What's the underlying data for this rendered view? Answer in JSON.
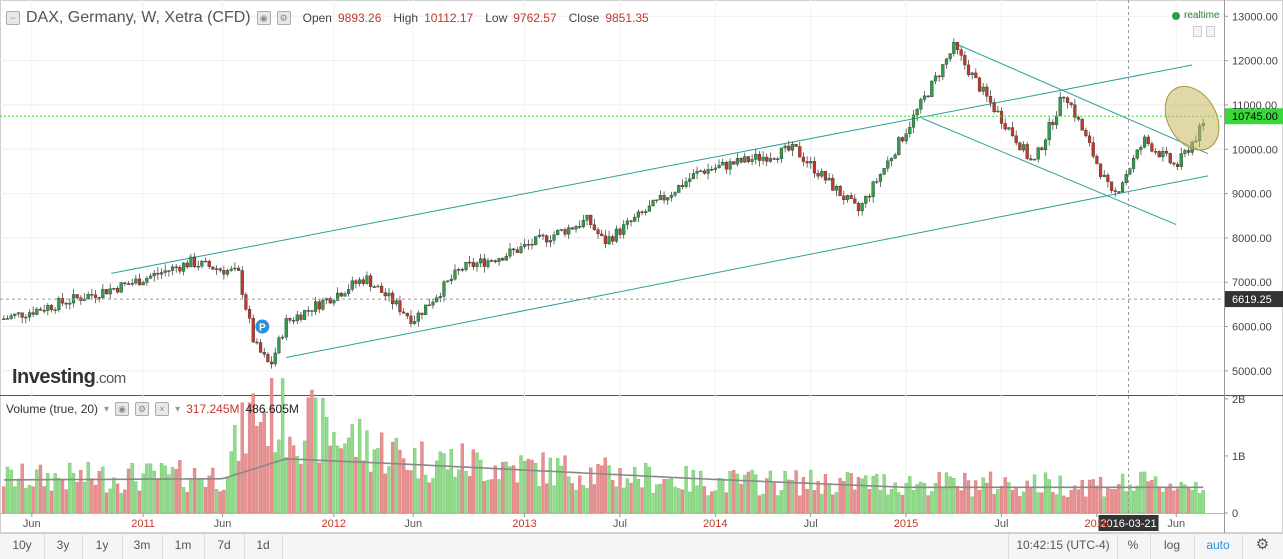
{
  "header": {
    "symbol": "DAX, Germany, W, Xetra (CFD)",
    "open_label": "Open",
    "open_value": "9893.26",
    "high_label": "High",
    "high_value": "10112.17",
    "low_label": "Low",
    "low_value": "9762.57",
    "close_label": "Close",
    "close_value": "9851.35"
  },
  "realtime_label": "realtime",
  "logo": {
    "main": "Investing",
    "suffix": ".com"
  },
  "volume_header": {
    "label": "Volume (true, 20)",
    "value1": "317.245M",
    "value2": "486.605M"
  },
  "marker_label": "P",
  "price_axis_labels": [
    "13000.00",
    "12000.00",
    "11000.00",
    "10000.00",
    "9000.00",
    "8000.00",
    "7000.00",
    "6000.00",
    "5000.00"
  ],
  "volume_axis_labels": [
    "2B",
    "1B",
    "0"
  ],
  "price_tags": {
    "last": "10745.00",
    "crosshair": "6619.25"
  },
  "crosshair_date": "2016-03-21",
  "time_labels": [
    "Jun",
    "2011",
    "Jun",
    "2012",
    "Jun",
    "2013",
    "Jul",
    "2014",
    "Jul",
    "2015",
    "Jul",
    "2016",
    "Jun"
  ],
  "bottom_bar": {
    "ranges": [
      "10y",
      "3y",
      "1y",
      "3m",
      "1m",
      "7d",
      "1d"
    ],
    "time": "10:42:15 (UTC-4)",
    "percent": "%",
    "log": "log",
    "auto": "auto",
    "settings_icon": "gear-icon"
  },
  "colors": {
    "up": "#2e9e48",
    "down": "#c0392b",
    "up_volume": "#90dc8a",
    "down_volume": "#e89090",
    "trendline": "#2aa198",
    "last_price": "#39d839",
    "highlight": "#c8b860"
  },
  "chart_data": {
    "type": "candlestick",
    "interval": "weekly",
    "x_range": [
      "2010-04",
      "2016-08"
    ],
    "y_range": [
      4500,
      13300
    ],
    "price_key_points": [
      {
        "date": "2010-04",
        "close": 6150
      },
      {
        "date": "2010-12",
        "close": 6950
      },
      {
        "date": "2011-04",
        "close": 7450
      },
      {
        "date": "2011-07",
        "close": 7200
      },
      {
        "date": "2011-08",
        "close": 5600
      },
      {
        "date": "2011-09",
        "close": 5100
      },
      {
        "date": "2011-10",
        "close": 6100
      },
      {
        "date": "2012-03",
        "close": 7100
      },
      {
        "date": "2012-06",
        "close": 6150
      },
      {
        "date": "2012-09",
        "close": 7300
      },
      {
        "date": "2012-12",
        "close": 7650
      },
      {
        "date": "2013-05",
        "close": 8400
      },
      {
        "date": "2013-06",
        "close": 7900
      },
      {
        "date": "2013-12",
        "close": 9500
      },
      {
        "date": "2014-06",
        "close": 10000
      },
      {
        "date": "2014-10",
        "close": 8600
      },
      {
        "date": "2014-12",
        "close": 9800
      },
      {
        "date": "2015-04",
        "close": 12300
      },
      {
        "date": "2015-06",
        "close": 11200
      },
      {
        "date": "2015-08",
        "close": 10200
      },
      {
        "date": "2015-09",
        "close": 9650
      },
      {
        "date": "2015-11",
        "close": 11300
      },
      {
        "date": "2016-02",
        "close": 8900
      },
      {
        "date": "2016-04",
        "close": 10200
      },
      {
        "date": "2016-06",
        "close": 9600
      },
      {
        "date": "2016-08",
        "close": 10700
      }
    ],
    "volume_key_points": [
      {
        "date": "2010-04",
        "value": 0.6
      },
      {
        "date": "2011-06",
        "value": 0.65
      },
      {
        "date": "2011-08",
        "value": 1.8
      },
      {
        "date": "2012-06",
        "value": 0.95
      },
      {
        "date": "2013-12",
        "value": 0.55
      },
      {
        "date": "2015-08",
        "value": 0.5
      },
      {
        "date": "2016-08",
        "value": 0.5
      }
    ],
    "volume_ma_points": [
      {
        "date": "2010-04",
        "value": 0.58
      },
      {
        "date": "2011-06",
        "value": 0.6
      },
      {
        "date": "2011-10",
        "value": 0.95
      },
      {
        "date": "2012-06",
        "value": 0.85
      },
      {
        "date": "2013-12",
        "value": 0.6
      },
      {
        "date": "2015-01",
        "value": 0.45
      },
      {
        "date": "2016-08",
        "value": 0.45
      }
    ],
    "trendlines": [
      {
        "from": {
          "date": "2010-11",
          "price": 7200
        },
        "to": {
          "date": "2016-07",
          "price": 11900
        }
      },
      {
        "from": {
          "date": "2011-10",
          "price": 5300
        },
        "to": {
          "date": "2016-08",
          "price": 9400
        }
      },
      {
        "from": {
          "date": "2015-04",
          "price": 12400
        },
        "to": {
          "date": "2016-08",
          "price": 9900
        }
      },
      {
        "from": {
          "date": "2015-02",
          "price": 10700
        },
        "to": {
          "date": "2016-06",
          "price": 8300
        }
      }
    ],
    "last_price": 10745.0,
    "crosshair_price": 6619.25
  }
}
